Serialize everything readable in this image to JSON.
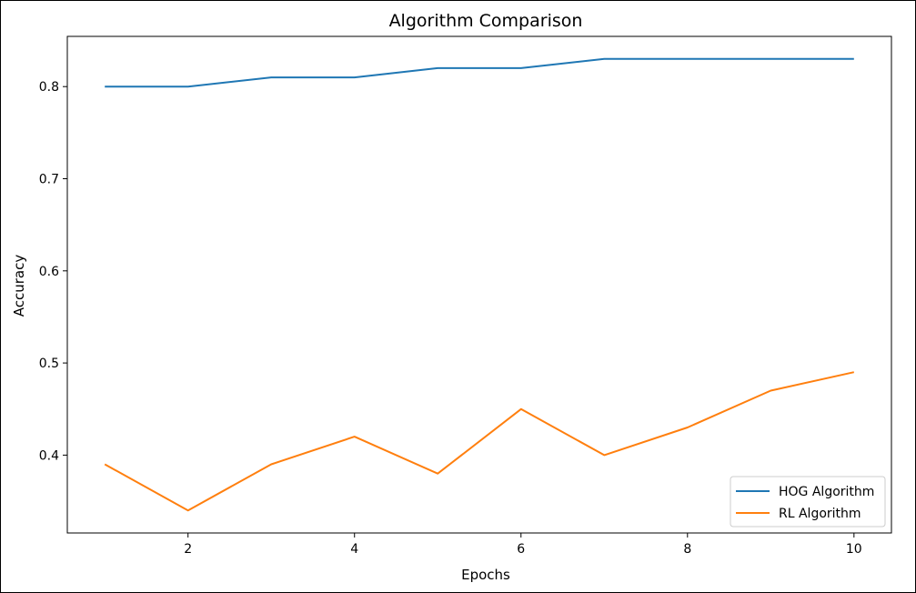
{
  "chart_data": {
    "type": "line",
    "title": "Algorithm Comparison",
    "xlabel": "Epochs",
    "ylabel": "Accuracy",
    "x": [
      1,
      2,
      3,
      4,
      5,
      6,
      7,
      8,
      9,
      10
    ],
    "series": [
      {
        "name": "HOG Algorithm",
        "color": "#1f77b4",
        "values": [
          0.8,
          0.8,
          0.81,
          0.81,
          0.82,
          0.82,
          0.83,
          0.83,
          0.83,
          0.83
        ]
      },
      {
        "name": "RL Algorithm",
        "color": "#ff7f0e",
        "values": [
          0.39,
          0.34,
          0.39,
          0.42,
          0.38,
          0.45,
          0.4,
          0.43,
          0.47,
          0.49
        ]
      }
    ],
    "xticks": [
      2,
      4,
      6,
      8,
      10
    ],
    "yticks": [
      0.4,
      0.5,
      0.6,
      0.7,
      0.8
    ],
    "xlim": [
      0.55,
      10.45
    ],
    "ylim": [
      0.3155,
      0.8545
    ],
    "grid": false,
    "legend_position": "lower right"
  }
}
